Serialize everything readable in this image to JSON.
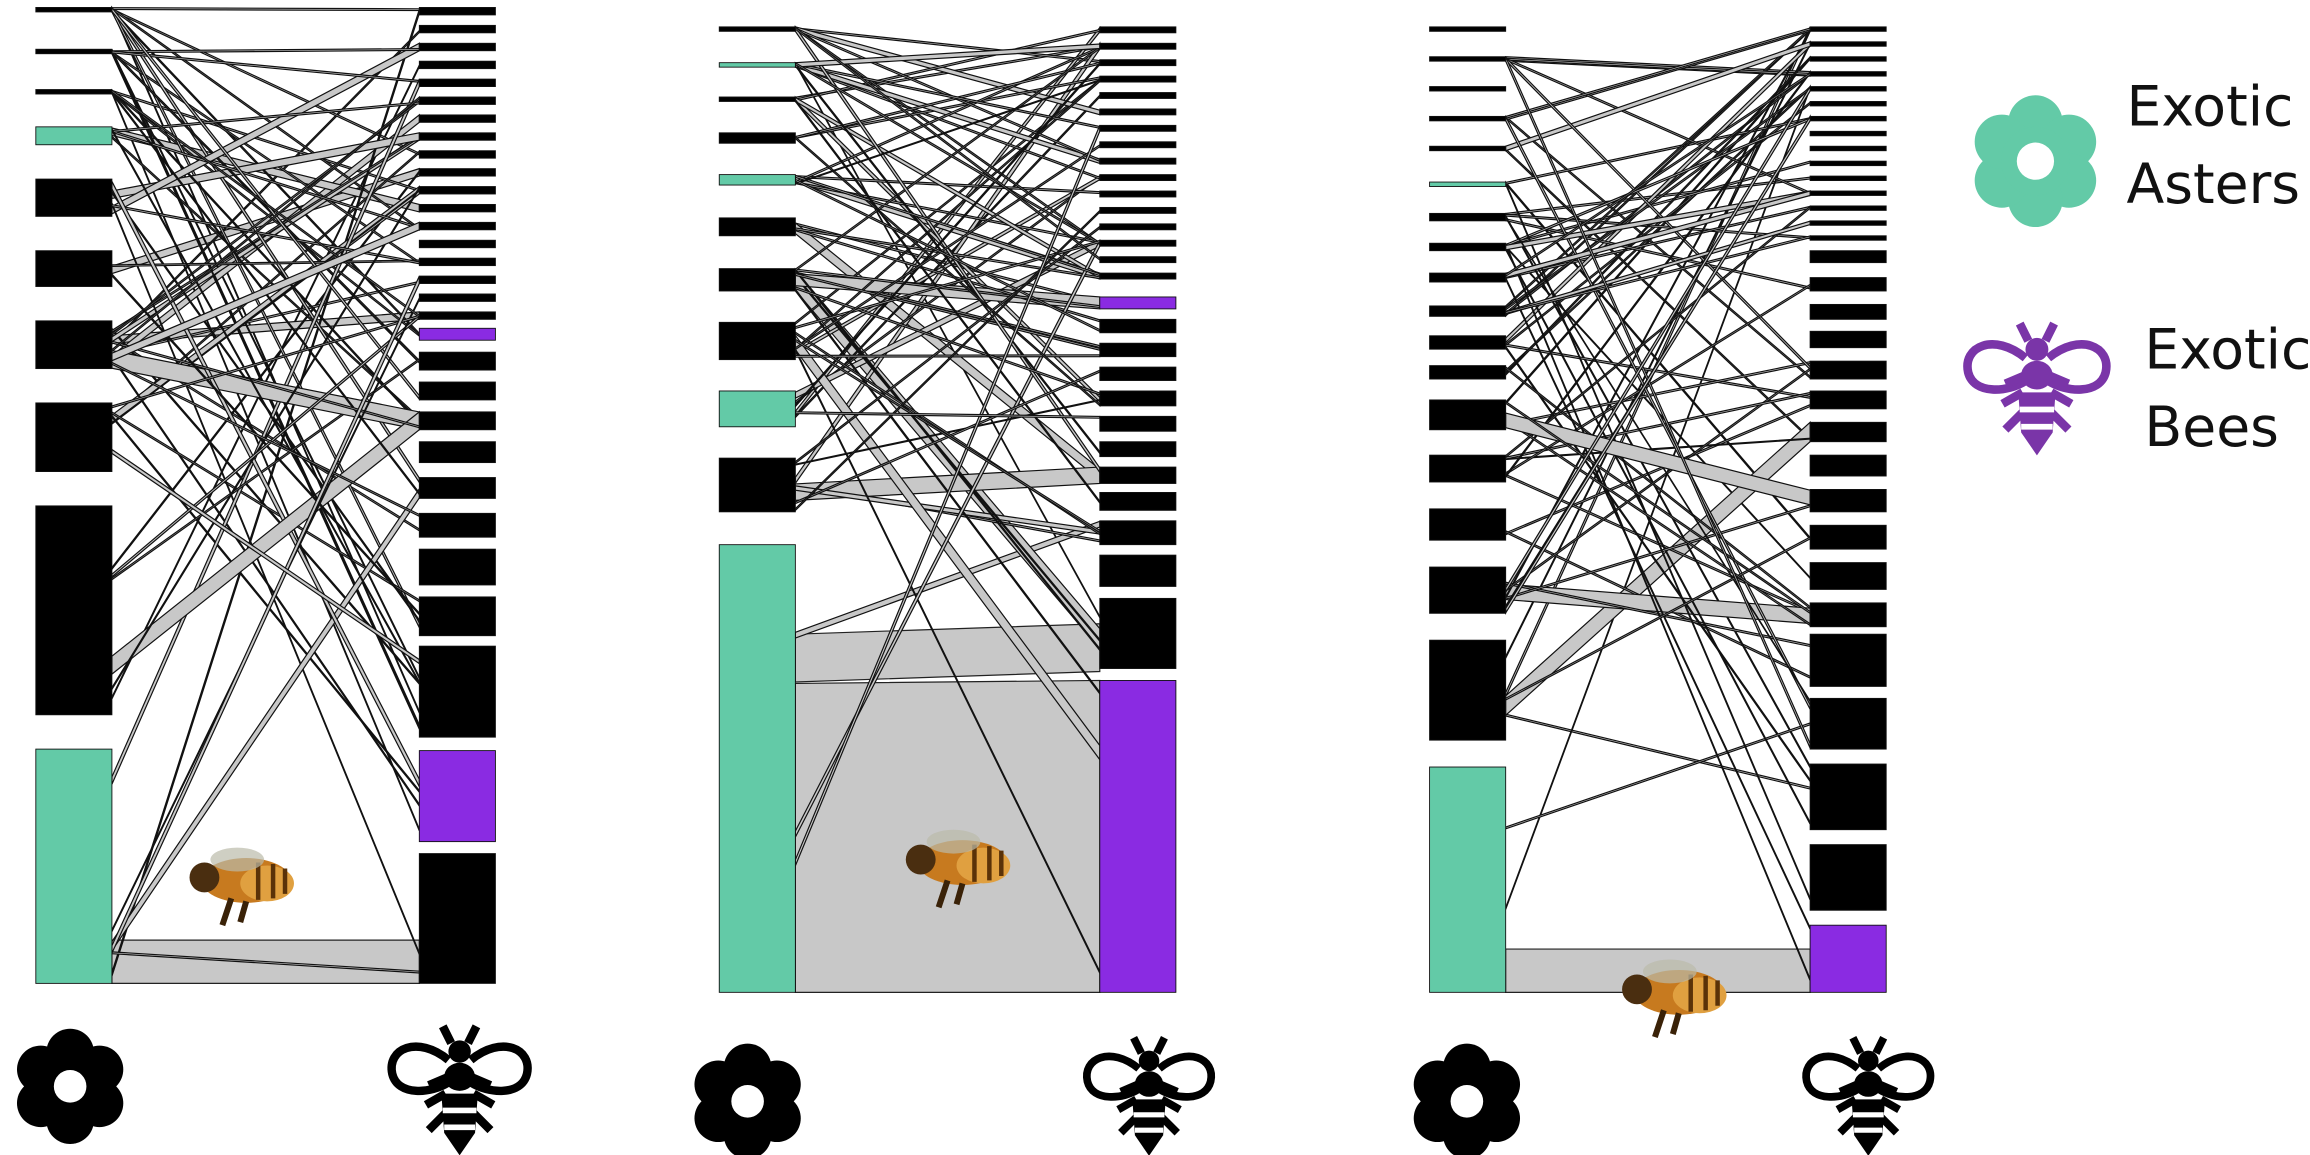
{
  "legend": [
    {
      "lines": [
        "Exotic",
        "Asters"
      ]
    },
    {
      "lines": [
        "Exotic",
        "Bees"
      ]
    }
  ]
}
